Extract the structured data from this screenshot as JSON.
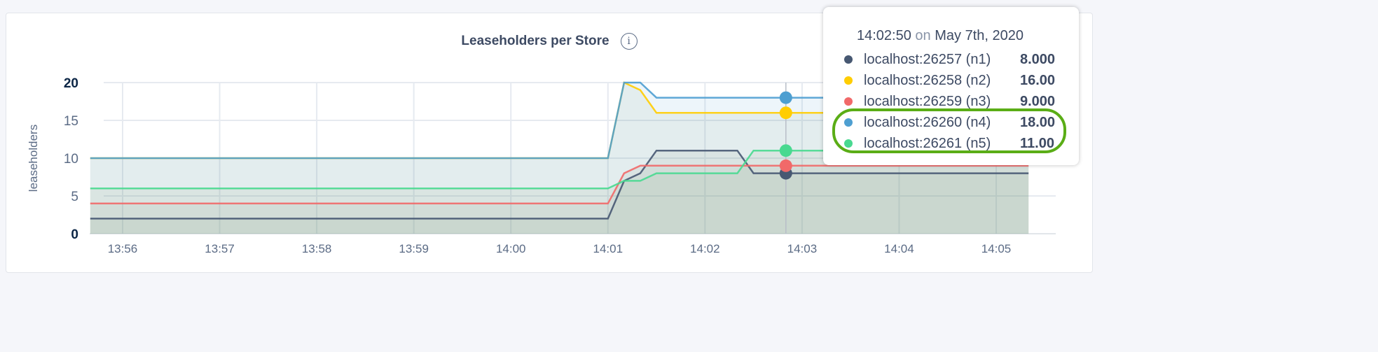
{
  "chart_data": {
    "type": "area",
    "title": "Leaseholders per Store",
    "ylabel": "leaseholders",
    "xlabel": "",
    "ylim": [
      0,
      20
    ],
    "yticks": [
      "0",
      "5",
      "10",
      "15",
      "20"
    ],
    "xticks": [
      "13:56",
      "13:57",
      "13:58",
      "13:59",
      "14:00",
      "14:01",
      "14:02",
      "14:03",
      "14:04",
      "14:05"
    ],
    "grid": true,
    "series": [
      {
        "name": "localhost:26257 (n1)",
        "color": "#475872",
        "points": [
          [
            "13:55:40",
            2
          ],
          [
            "14:01:00",
            2
          ],
          [
            "14:01:10",
            7
          ],
          [
            "14:01:20",
            8
          ],
          [
            "14:01:30",
            11
          ],
          [
            "14:02:20",
            11
          ],
          [
            "14:02:30",
            8
          ],
          [
            "14:05:20",
            8
          ]
        ]
      },
      {
        "name": "localhost:26258 (n2)",
        "color": "#ffcd02",
        "points": [
          [
            "13:55:40",
            10
          ],
          [
            "14:01:00",
            10
          ],
          [
            "14:01:10",
            20
          ],
          [
            "14:01:20",
            19
          ],
          [
            "14:01:30",
            16
          ],
          [
            "14:05:20",
            16
          ]
        ]
      },
      {
        "name": "localhost:26259 (n3)",
        "color": "#f16969",
        "points": [
          [
            "13:55:40",
            4
          ],
          [
            "14:01:00",
            4
          ],
          [
            "14:01:10",
            8
          ],
          [
            "14:01:20",
            9
          ],
          [
            "14:05:20",
            9
          ]
        ]
      },
      {
        "name": "localhost:26260 (n4)",
        "color": "#4e9fd1",
        "points": [
          [
            "13:55:40",
            10
          ],
          [
            "14:01:00",
            10
          ],
          [
            "14:01:10",
            20
          ],
          [
            "14:01:20",
            20
          ],
          [
            "14:01:30",
            18
          ],
          [
            "14:05:20",
            18
          ]
        ]
      },
      {
        "name": "localhost:26261 (n5)",
        "color": "#49d990",
        "points": [
          [
            "13:55:40",
            6
          ],
          [
            "14:01:00",
            6
          ],
          [
            "14:01:10",
            7
          ],
          [
            "14:01:20",
            7
          ],
          [
            "14:01:30",
            8
          ],
          [
            "14:02:20",
            8
          ],
          [
            "14:02:30",
            11
          ],
          [
            "14:05:20",
            11
          ]
        ]
      }
    ],
    "hover_time": "14:02:50"
  },
  "tooltip": {
    "time": "14:02:50",
    "on": "on",
    "date": "May 7th, 2020",
    "rows": [
      {
        "label": "localhost:26257 (n1)",
        "value": "8.000",
        "color": "#475872"
      },
      {
        "label": "localhost:26258 (n2)",
        "value": "16.00",
        "color": "#ffcd02"
      },
      {
        "label": "localhost:26259 (n3)",
        "value": "9.000",
        "color": "#f16969"
      },
      {
        "label": "localhost:26260 (n4)",
        "value": "18.00",
        "color": "#4e9fd1"
      },
      {
        "label": "localhost:26261 (n5)",
        "value": "11.00",
        "color": "#49d990"
      }
    ]
  },
  "highlight_color": "#5aad16"
}
